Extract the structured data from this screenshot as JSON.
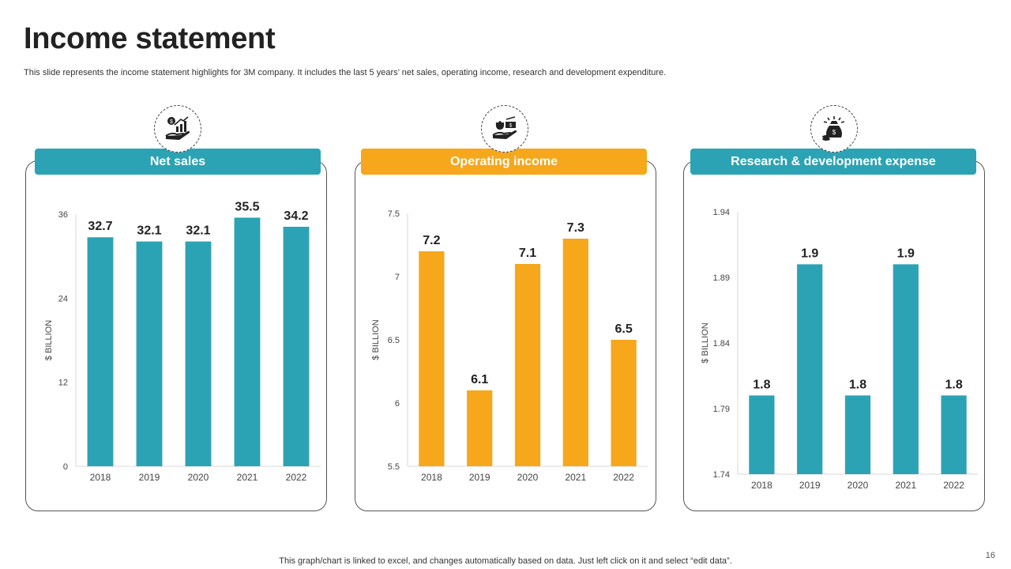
{
  "slide": {
    "title": "Income statement",
    "subtitle": "This slide represents the income statement highlights for 3M company. It includes the last 5 years’ net sales, operating income, research and development expenditure.",
    "footer": "This graph/chart is linked to excel,  and changes automatically based on data. Just left click on it and select “edit data”.",
    "page_number": "16"
  },
  "colors": {
    "teal": "#2CA3B4",
    "orange": "#F6A71C"
  },
  "icons": [
    "money-growth-hand-icon",
    "money-hand-icon",
    "money-bag-coins-icon"
  ],
  "chart_data": [
    {
      "type": "bar",
      "title": "Net sales",
      "categories": [
        "2018",
        "2019",
        "2020",
        "2021",
        "2022"
      ],
      "values": [
        32.7,
        32.1,
        32.1,
        35.5,
        34.2
      ],
      "labels": [
        "32.7",
        "32.1",
        "32.1",
        "35.5",
        "34.2"
      ],
      "ylabel": "$ BILLION",
      "ylim": [
        0,
        36
      ],
      "yticks": [
        "0",
        "12",
        "24",
        "36"
      ],
      "color": "#2CA3B4",
      "grid": false
    },
    {
      "type": "bar",
      "title": "Operating income",
      "categories": [
        "2018",
        "2019",
        "2020",
        "2021",
        "2022"
      ],
      "values": [
        7.2,
        6.1,
        7.1,
        7.3,
        6.5
      ],
      "labels": [
        "7.2",
        "6.1",
        "7.1",
        "7.3",
        "6.5"
      ],
      "ylabel": "$ BILLION",
      "ylim": [
        5.5,
        7.5
      ],
      "yticks": [
        "5.5",
        "6",
        "6.5",
        "7",
        "7.5"
      ],
      "color": "#F6A71C",
      "grid": false
    },
    {
      "type": "bar",
      "title": "Research & development expense",
      "categories": [
        "2018",
        "2019",
        "2020",
        "2021",
        "2022"
      ],
      "values": [
        1.8,
        1.9,
        1.8,
        1.9,
        1.8
      ],
      "labels": [
        "1.8",
        "1.9",
        "1.8",
        "1.9",
        "1.8"
      ],
      "ylabel": "$ BILLION",
      "ylim": [
        1.74,
        1.94
      ],
      "yticks": [
        "1.74",
        "1.79",
        "1.84",
        "1.89",
        "1.94"
      ],
      "color": "#2CA3B4",
      "grid": false
    }
  ]
}
